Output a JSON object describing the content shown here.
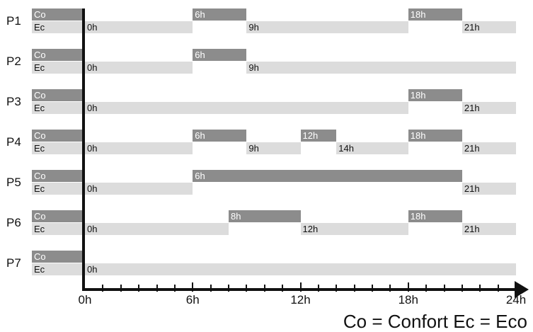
{
  "chart_data": {
    "type": "timeline",
    "x_unit": "h",
    "xlim": [
      0,
      24
    ],
    "x_major_tick_labels": [
      "0h",
      "6h",
      "12h",
      "18h",
      "24h"
    ],
    "x_minor_tick_step": 1,
    "programs": [
      {
        "label": "P1",
        "co_label": "Co",
        "ec_label": "Ec",
        "comfort": [
          [
            6,
            9
          ],
          [
            18,
            21
          ]
        ],
        "eco": [
          [
            0,
            6
          ],
          [
            9,
            18
          ],
          [
            21,
            24
          ]
        ],
        "comfort_start_labels": [
          "6h",
          "18h"
        ],
        "eco_start_labels": [
          "0h",
          "9h",
          "21h"
        ]
      },
      {
        "label": "P2",
        "co_label": "Co",
        "ec_label": "Ec",
        "comfort": [
          [
            6,
            9
          ]
        ],
        "eco": [
          [
            0,
            6
          ],
          [
            9,
            24
          ]
        ],
        "comfort_start_labels": [
          "6h"
        ],
        "eco_start_labels": [
          "0h",
          "9h"
        ]
      },
      {
        "label": "P3",
        "co_label": "Co",
        "ec_label": "Ec",
        "comfort": [
          [
            18,
            21
          ]
        ],
        "eco": [
          [
            0,
            18
          ],
          [
            21,
            24
          ]
        ],
        "comfort_start_labels": [
          "18h"
        ],
        "eco_start_labels": [
          "0h",
          "21h"
        ]
      },
      {
        "label": "P4",
        "co_label": "Co",
        "ec_label": "Ec",
        "comfort": [
          [
            6,
            9
          ],
          [
            12,
            14
          ],
          [
            18,
            21
          ]
        ],
        "eco": [
          [
            0,
            6
          ],
          [
            9,
            12
          ],
          [
            14,
            18
          ],
          [
            21,
            24
          ]
        ],
        "comfort_start_labels": [
          "6h",
          "12h",
          "18h"
        ],
        "eco_start_labels": [
          "0h",
          "9h",
          "14h",
          "21h"
        ]
      },
      {
        "label": "P5",
        "co_label": "Co",
        "ec_label": "Ec",
        "comfort": [
          [
            6,
            21
          ]
        ],
        "eco": [
          [
            0,
            6
          ],
          [
            21,
            24
          ]
        ],
        "comfort_start_labels": [
          "6h"
        ],
        "eco_start_labels": [
          "0h",
          "21h"
        ]
      },
      {
        "label": "P6",
        "co_label": "Co",
        "ec_label": "Ec",
        "comfort": [
          [
            8,
            12
          ],
          [
            18,
            21
          ]
        ],
        "eco": [
          [
            0,
            8
          ],
          [
            12,
            18
          ],
          [
            21,
            24
          ]
        ],
        "comfort_start_labels": [
          "8h",
          "18h"
        ],
        "eco_start_labels": [
          "0h",
          "12h",
          "21h"
        ]
      },
      {
        "label": "P7",
        "co_label": "Co",
        "ec_label": "Ec",
        "comfort": [],
        "eco": [
          [
            0,
            24
          ]
        ],
        "comfort_start_labels": [],
        "eco_start_labels": [
          "0h"
        ]
      }
    ],
    "legend": "Co = Confort  Ec = Eco",
    "colors": {
      "comfort": "#8c8c8c",
      "eco": "#dcdcdc",
      "axis": "#111111"
    }
  }
}
